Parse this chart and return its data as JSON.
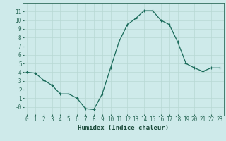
{
  "x": [
    0,
    1,
    2,
    3,
    4,
    5,
    6,
    7,
    8,
    9,
    10,
    11,
    12,
    13,
    14,
    15,
    16,
    17,
    18,
    19,
    20,
    21,
    22,
    23
  ],
  "y": [
    4.0,
    3.9,
    3.1,
    2.5,
    1.5,
    1.5,
    1.0,
    -0.2,
    -0.3,
    1.5,
    4.5,
    7.5,
    9.5,
    10.2,
    11.1,
    11.1,
    10.0,
    9.5,
    7.5,
    5.0,
    4.5,
    4.1,
    4.5,
    4.5
  ],
  "line_color": "#1a6b5a",
  "marker": "+",
  "marker_size": 3,
  "marker_linewidth": 0.8,
  "line_width": 0.9,
  "xlabel": "Humidex (Indice chaleur)",
  "xlabel_fontsize": 6.5,
  "xlabel_bold": true,
  "ylabel": "",
  "title": "",
  "xlim": [
    -0.5,
    23.5
  ],
  "ylim": [
    -1,
    12
  ],
  "yticks": [
    0,
    1,
    2,
    3,
    4,
    5,
    6,
    7,
    8,
    9,
    10,
    11
  ],
  "xticks": [
    0,
    1,
    2,
    3,
    4,
    5,
    6,
    7,
    8,
    9,
    10,
    11,
    12,
    13,
    14,
    15,
    16,
    17,
    18,
    19,
    20,
    21,
    22,
    23
  ],
  "grid_color": "#b8d8d4",
  "bg_color": "#ceeaea",
  "tick_fontsize": 5.5,
  "ytick_labels": [
    "-0",
    "1",
    "2",
    "3",
    "4",
    "5",
    "6",
    "7",
    "8",
    "9",
    "10",
    "11"
  ]
}
